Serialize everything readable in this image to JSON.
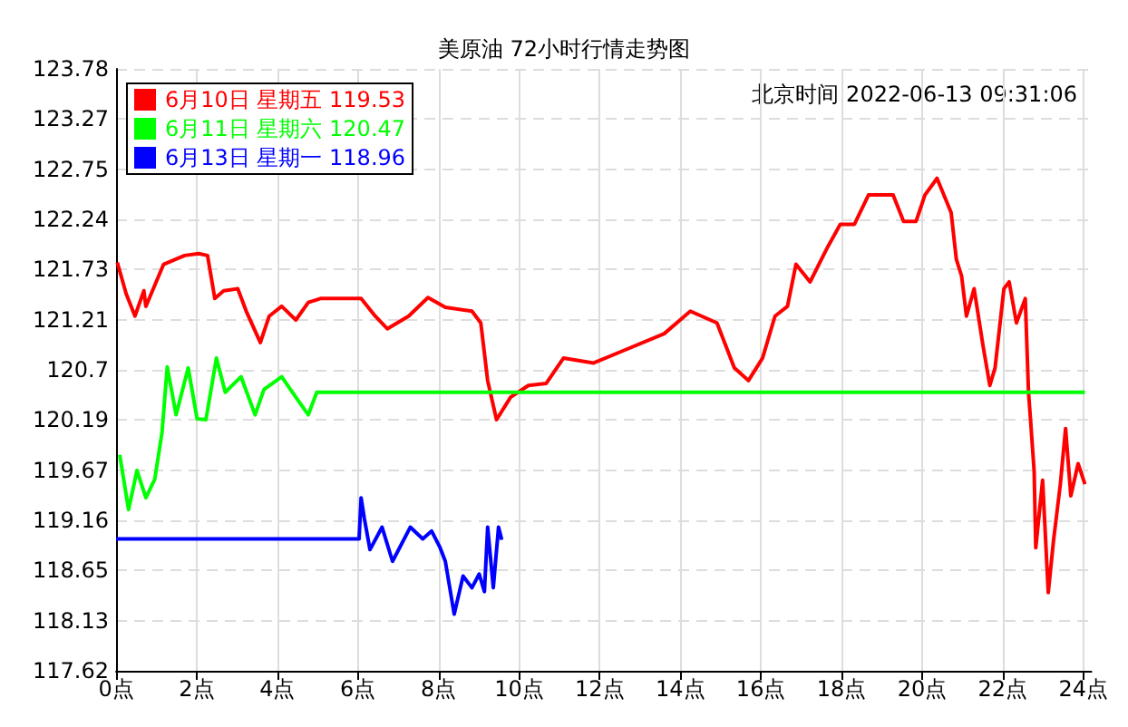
{
  "chart_data": {
    "type": "line",
    "title": "美原油 72小时行情走势图",
    "annotations": [
      "北京时间 2022-06-13 09:31:06"
    ],
    "xlim": [
      0,
      24.2
    ],
    "xticks": [
      {
        "value": 0,
        "label": "0点"
      },
      {
        "value": 2,
        "label": "2点"
      },
      {
        "value": 4,
        "label": "4点"
      },
      {
        "value": 6,
        "label": "6点"
      },
      {
        "value": 8,
        "label": "8点"
      },
      {
        "value": 10,
        "label": "10点"
      },
      {
        "value": 12,
        "label": "12点"
      },
      {
        "value": 14,
        "label": "14点"
      },
      {
        "value": 16,
        "label": "16点"
      },
      {
        "value": 18,
        "label": "18点"
      },
      {
        "value": 20,
        "label": "20点"
      },
      {
        "value": 22,
        "label": "22点"
      },
      {
        "value": 24,
        "label": "24点"
      }
    ],
    "ylim": [
      117.62,
      123.78
    ],
    "yticks": [
      117.62,
      118.13,
      118.65,
      119.16,
      119.67,
      120.19,
      120.7,
      121.21,
      121.73,
      122.24,
      122.75,
      123.27,
      123.78
    ],
    "grid": true,
    "legend": "top left",
    "marker": "none",
    "line_style": "solid",
    "series": [
      {
        "name": "6月10日 星期五 119.53",
        "color": "#ff0000",
        "x": [
          0.03,
          0.25,
          0.47,
          0.69,
          0.74,
          1.18,
          1.7,
          2.05,
          2.27,
          2.45,
          2.67,
          3.02,
          3.23,
          3.58,
          3.8,
          4.11,
          4.46,
          4.77,
          5.07,
          6.08,
          6.43,
          6.73,
          7.26,
          7.74,
          8.17,
          8.83,
          9.05,
          9.22,
          9.44,
          9.79,
          10.23,
          10.67,
          11.1,
          11.85,
          12.55,
          13.6,
          14.25,
          14.91,
          15.34,
          15.69,
          16.04,
          16.35,
          16.66,
          16.87,
          17.22,
          17.66,
          17.97,
          18.32,
          18.67,
          19.28,
          19.54,
          19.85,
          20.07,
          20.37,
          20.72,
          20.85,
          20.98,
          21.1,
          21.29,
          21.51,
          21.68,
          21.81,
          22.03,
          22.16,
          22.34,
          22.56,
          22.64,
          22.69,
          22.78,
          22.82,
          22.99,
          23.13,
          23.26,
          23.43,
          23.56,
          23.69,
          23.87,
          24.04
        ],
        "values": [
          121.8,
          121.48,
          121.25,
          121.51,
          121.35,
          121.78,
          121.87,
          121.89,
          121.87,
          121.43,
          121.51,
          121.53,
          121.3,
          120.98,
          121.25,
          121.35,
          121.21,
          121.39,
          121.43,
          121.43,
          121.25,
          121.12,
          121.25,
          121.44,
          121.34,
          121.3,
          121.18,
          120.59,
          120.19,
          120.42,
          120.54,
          120.56,
          120.82,
          120.77,
          120.89,
          121.07,
          121.3,
          121.18,
          120.72,
          120.59,
          120.82,
          121.25,
          121.35,
          121.78,
          121.6,
          121.96,
          122.19,
          122.19,
          122.49,
          122.49,
          122.22,
          122.22,
          122.49,
          122.66,
          122.31,
          121.83,
          121.66,
          121.25,
          121.53,
          120.95,
          120.54,
          120.72,
          121.53,
          121.6,
          121.18,
          121.43,
          120.47,
          120.19,
          119.66,
          118.88,
          119.57,
          118.42,
          118.95,
          119.53,
          120.1,
          119.41,
          119.74,
          119.53
        ]
      },
      {
        "name": "6月11日 星期六 120.47",
        "color": "#00ff00",
        "x": [
          0.09,
          0.31,
          0.52,
          0.74,
          0.96,
          1.14,
          1.27,
          1.49,
          1.79,
          2.01,
          2.23,
          2.49,
          2.71,
          3.1,
          3.45,
          3.67,
          4.11,
          4.46,
          4.77,
          4.98,
          5.07,
          24.04
        ],
        "values": [
          119.83,
          119.27,
          119.67,
          119.39,
          119.58,
          120.06,
          120.73,
          120.24,
          120.72,
          120.2,
          120.19,
          120.82,
          120.47,
          120.63,
          120.24,
          120.5,
          120.63,
          120.42,
          120.24,
          120.47,
          120.47,
          120.47
        ]
      },
      {
        "name": "6月13日 星期一 118.96",
        "color": "#0000ff",
        "x": [
          0,
          6.03,
          6.08,
          6.16,
          6.3,
          6.6,
          6.86,
          7.3,
          7.61,
          7.83,
          8.04,
          8.17,
          8.39,
          8.61,
          8.83,
          9.01,
          9.14,
          9.22,
          9.36,
          9.49,
          9.57
        ],
        "values": [
          118.97,
          118.97,
          119.39,
          119.18,
          118.86,
          119.09,
          118.74,
          119.09,
          118.97,
          119.05,
          118.88,
          118.74,
          118.2,
          118.59,
          118.47,
          118.61,
          118.43,
          119.09,
          118.47,
          119.09,
          118.96
        ]
      }
    ]
  }
}
